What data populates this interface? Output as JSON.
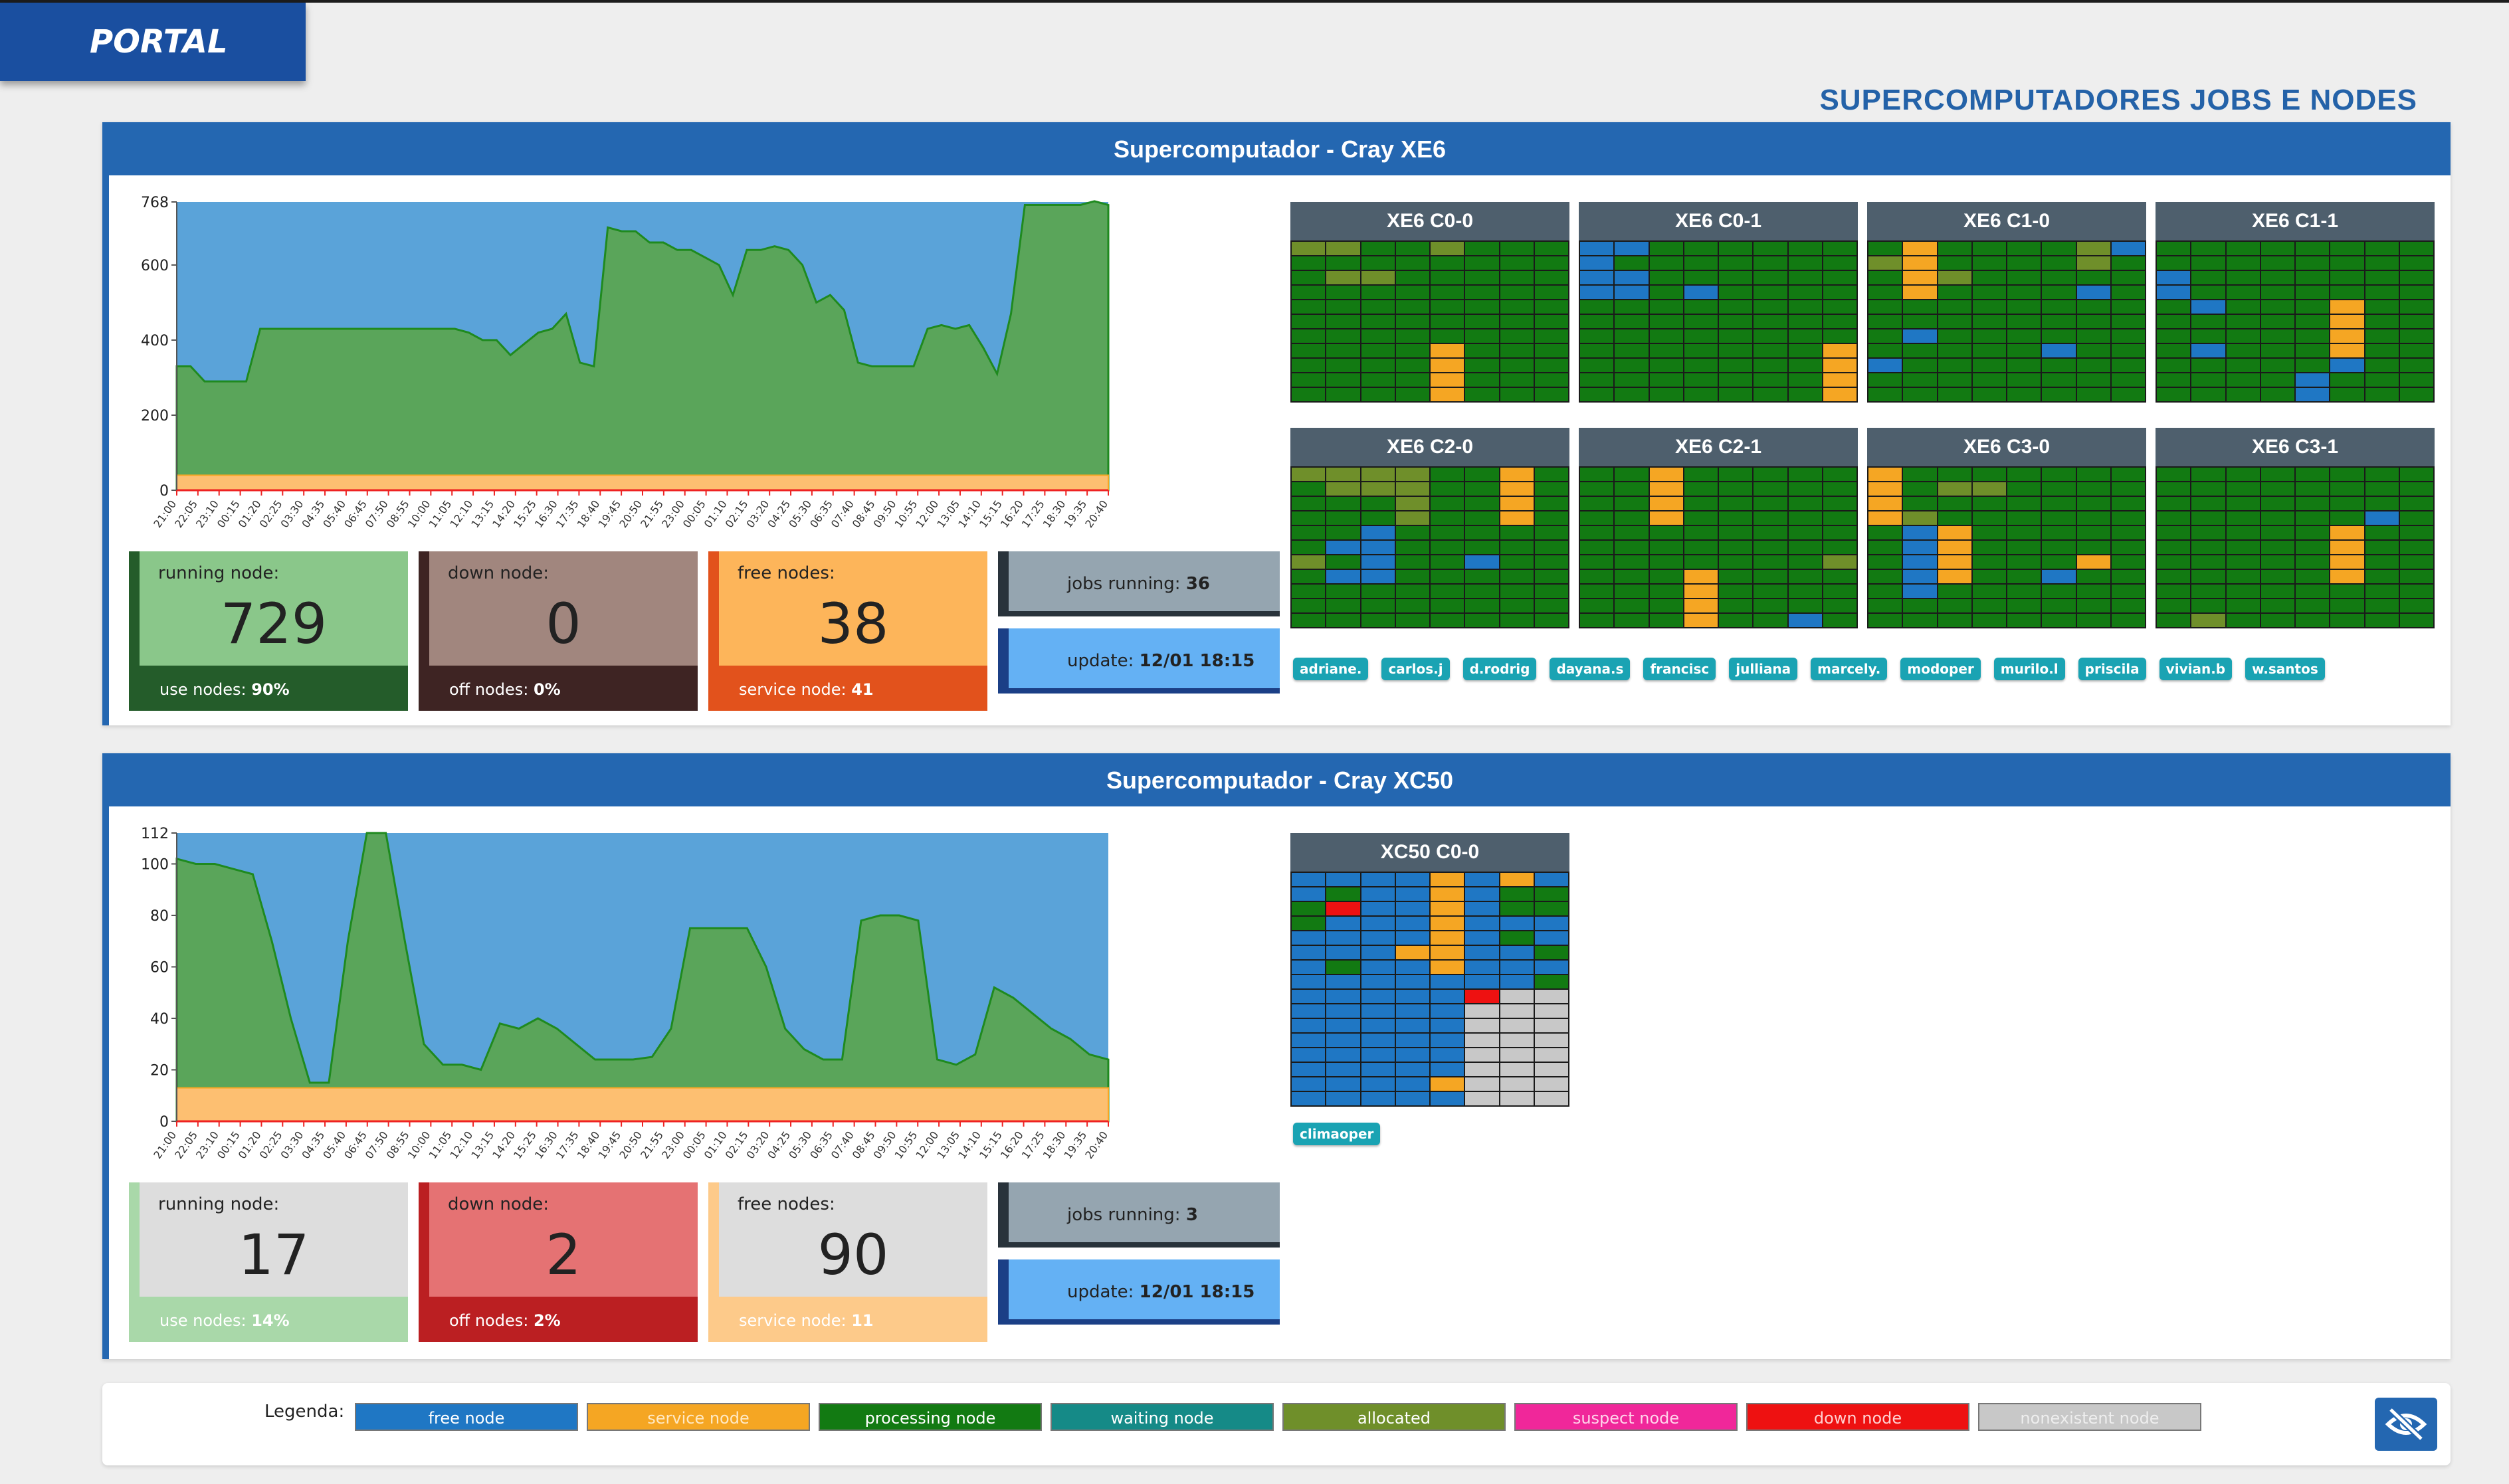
{
  "portal_label": "PORTAL",
  "page_title": "SUPERCOMPUTADORES JOBS E NODES",
  "colors": {
    "free": "#1f77c4",
    "service": "#f5a623",
    "processing": "#127a12",
    "waiting": "#158a87",
    "allocated": "#6f8f2a",
    "suspect": "#f0279a",
    "down": "#ee1111",
    "nonexistent": "#c8c8c8"
  },
  "time_ticks": [
    "21:00",
    "22:05",
    "23:10",
    "00:15",
    "01:20",
    "02:25",
    "03:30",
    "04:35",
    "05:40",
    "06:45",
    "07:50",
    "08:55",
    "10:00",
    "11:05",
    "12:10",
    "13:15",
    "14:20",
    "15:25",
    "16:30",
    "17:35",
    "18:40",
    "19:45",
    "20:50",
    "21:55",
    "23:00",
    "00:05",
    "01:10",
    "02:15",
    "03:20",
    "04:25",
    "05:30",
    "06:35",
    "07:40",
    "08:45",
    "09:50",
    "10:55",
    "12:00",
    "13:05",
    "14:10",
    "15:15",
    "16:20",
    "17:25",
    "18:30",
    "19:35",
    "20:40"
  ],
  "systems": [
    {
      "title": "Supercomputador - Cray XE6",
      "stats": {
        "running_label": "running node:",
        "running_value": "729",
        "use_label": "use nodes:",
        "use_value": "90%",
        "down_label": "down node:",
        "down_value": "0",
        "off_label": "off nodes:",
        "off_value": "0%",
        "free_label": "free nodes:",
        "free_value": "38",
        "service_label": "service node:",
        "service_value": "41",
        "jobs_label": "jobs running:",
        "jobs_value": "36",
        "update_label": "update:",
        "update_value": "12/01 18:15"
      },
      "racks": [
        "XE6 C0-0",
        "XE6 C0-1",
        "XE6 C1-0",
        "XE6 C1-1",
        "XE6 C2-0",
        "XE6 C2-1",
        "XE6 C3-0",
        "XE6 C3-1"
      ],
      "users": [
        "adriane.",
        "carlos.j",
        "d.rodrig",
        "dayana.s",
        "francisc",
        "julliana",
        "marcely.",
        "modoper",
        "murilo.l",
        "priscila",
        "vivian.b",
        "w.santos"
      ]
    },
    {
      "title": "Supercomputador - Cray XC50",
      "stats": {
        "running_label": "running node:",
        "running_value": "17",
        "use_label": "use nodes:",
        "use_value": "14%",
        "down_label": "down node:",
        "down_value": "2",
        "off_label": "off nodes:",
        "off_value": "2%",
        "free_label": "free nodes:",
        "free_value": "90",
        "service_label": "service node:",
        "service_value": "11",
        "jobs_label": "jobs running:",
        "jobs_value": "3",
        "update_label": "update:",
        "update_value": "12/01 18:15"
      },
      "racks": [
        "XC50 C0-0"
      ],
      "users": [
        "climaoper"
      ]
    }
  ],
  "chart_data": [
    {
      "type": "area",
      "ylim": [
        0,
        768
      ],
      "yticks": [
        "0",
        "200",
        "400",
        "600",
        "768"
      ],
      "series": [
        {
          "values": [
            330,
            330,
            290,
            290,
            290,
            290,
            430,
            430,
            430,
            430,
            430,
            430,
            430,
            430,
            430,
            430,
            430,
            430,
            430,
            430,
            430,
            420,
            400,
            400,
            360,
            390,
            420,
            430,
            470,
            340,
            330,
            700,
            690,
            690,
            660,
            660,
            640,
            640,
            620,
            600,
            520,
            640,
            640,
            650,
            640,
            600,
            500,
            520,
            480,
            340,
            330,
            330,
            330,
            330,
            430,
            440,
            430,
            440,
            380,
            310,
            470,
            760,
            760,
            760,
            760,
            760,
            770,
            760
          ]
        },
        {
          "values": [
            40,
            40,
            40,
            40,
            40,
            40,
            40,
            40,
            40,
            40,
            40,
            40,
            40,
            40,
            40,
            40,
            40,
            40,
            40,
            40,
            40,
            40,
            40,
            40,
            40,
            40,
            40,
            40,
            40,
            40,
            40,
            40,
            40,
            40,
            40,
            40,
            40,
            40,
            40,
            40,
            40,
            40,
            40,
            40,
            40,
            40,
            40,
            40,
            40,
            40,
            40,
            40,
            40,
            40,
            40,
            40,
            40,
            40,
            40,
            40,
            40,
            40,
            40,
            40,
            40,
            40,
            40,
            40
          ]
        }
      ]
    },
    {
      "type": "area",
      "ylim": [
        0,
        112
      ],
      "yticks": [
        "0",
        "20",
        "40",
        "60",
        "80",
        "100",
        "112"
      ],
      "series": [
        {
          "values": [
            102,
            100,
            100,
            98,
            96,
            70,
            40,
            15,
            15,
            70,
            112,
            112,
            70,
            30,
            22,
            22,
            20,
            38,
            36,
            40,
            36,
            30,
            24,
            24,
            24,
            25,
            36,
            75,
            75,
            75,
            75,
            60,
            36,
            28,
            24,
            24,
            78,
            80,
            80,
            78,
            24,
            22,
            26,
            52,
            48,
            42,
            36,
            32,
            26,
            24
          ]
        },
        {
          "values": [
            13,
            13,
            13,
            13,
            13,
            13,
            13,
            13,
            13,
            13,
            13,
            13,
            13,
            13,
            13,
            13,
            13,
            13,
            13,
            13,
            13,
            13,
            13,
            13,
            13,
            13,
            13,
            13,
            13,
            13,
            13,
            13,
            13,
            13,
            13,
            13,
            13,
            13,
            13,
            13,
            13,
            13,
            13,
            13,
            13,
            13,
            13,
            13,
            13,
            13
          ]
        }
      ]
    }
  ],
  "legend": {
    "title": "Legenda:",
    "items": [
      {
        "label": "free node",
        "color": "#1f77c4",
        "text_color": "#ffffff"
      },
      {
        "label": "service node",
        "color": "#f5a623",
        "text_color": "#ffe9c4"
      },
      {
        "label": "processing node",
        "color": "#127a12",
        "text_color": "#ffffff"
      },
      {
        "label": "waiting node",
        "color": "#158a87",
        "text_color": "#ffffff"
      },
      {
        "label": "allocated",
        "color": "#6f8f2a",
        "text_color": "#ffffff"
      },
      {
        "label": "suspect node",
        "color": "#f0279a",
        "text_color": "#ffd3ea"
      },
      {
        "label": "down node",
        "color": "#ee1111",
        "text_color": "#ffd0d0"
      },
      {
        "label": "nonexistent node",
        "color": "#c8c8c8",
        "text_color": "#eeeeee"
      }
    ]
  }
}
